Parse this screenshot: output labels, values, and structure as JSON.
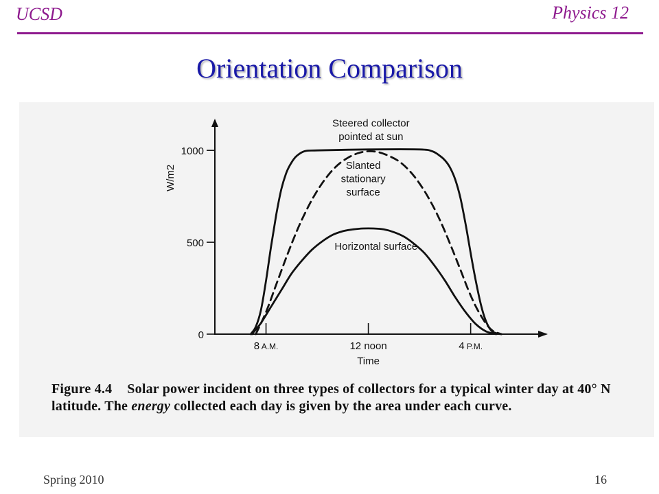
{
  "header": {
    "left": "UCSD",
    "right": "Physics 12"
  },
  "slide": {
    "title": "Orientation Comparison"
  },
  "figure": {
    "caption_num": "Figure 4.4",
    "caption_part1": "Solar power incident on three types of collectors for a typical winter day at 40° N latitude. The",
    "caption_em": "energy",
    "caption_part2": "collected each day is given by the area under each curve."
  },
  "footer": {
    "left": "Spring 2010",
    "page": "16"
  },
  "colors": {
    "accent": "#8e1a8e",
    "title": "#1a1aa8",
    "ink": "#111111",
    "panel": "#f3f3f3"
  },
  "chart_data": {
    "type": "line",
    "title": "",
    "xlabel": "Time",
    "ylabel": "W/m2",
    "x_unit": "hour of day",
    "xlim": [
      6.0,
      18.8
    ],
    "ylim": [
      0,
      1150
    ],
    "y_ticks": [
      0,
      500,
      1000
    ],
    "x_ticks": [
      {
        "value": 8,
        "main": "8",
        "sub": "A.M."
      },
      {
        "value": 12,
        "main": "12 noon",
        "sub": ""
      },
      {
        "value": 16,
        "main": "4",
        "sub": "P.M."
      }
    ],
    "grid": false,
    "legend": "none (curves labelled directly)",
    "series": [
      {
        "name": "Steered collector pointed at sun",
        "style": "solid",
        "x": [
          7.4,
          7.6,
          7.8,
          8.0,
          8.2,
          8.4,
          8.6,
          8.8,
          9.0,
          9.2,
          9.5,
          10.0,
          12.0,
          14.0,
          14.5,
          14.8,
          15.0,
          15.2,
          15.4,
          15.6,
          15.8,
          16.0,
          16.2,
          16.4,
          16.6,
          16.8,
          17.0,
          17.2
        ],
        "values": [
          0,
          40,
          130,
          290,
          480,
          650,
          790,
          880,
          935,
          970,
          995,
          1000,
          1005,
          1005,
          995,
          970,
          945,
          905,
          840,
          740,
          600,
          440,
          290,
          160,
          70,
          20,
          5,
          0
        ]
      },
      {
        "name": "Slanted stationary surface",
        "style": "dashed",
        "x": [
          7.6,
          8.0,
          8.4,
          8.8,
          9.2,
          9.6,
          10.0,
          10.4,
          10.8,
          11.2,
          11.6,
          12.0,
          12.4,
          12.8,
          13.2,
          13.6,
          14.0,
          14.4,
          14.8,
          15.2,
          15.6,
          16.0,
          16.4,
          16.8,
          17.2
        ],
        "values": [
          0,
          120,
          270,
          420,
          560,
          680,
          780,
          860,
          920,
          960,
          985,
          995,
          990,
          970,
          940,
          890,
          820,
          730,
          620,
          490,
          350,
          210,
          100,
          25,
          0
        ]
      },
      {
        "name": "Horizontal surface",
        "style": "solid",
        "x": [
          7.45,
          7.8,
          8.2,
          8.6,
          9.0,
          9.4,
          9.8,
          10.2,
          10.6,
          11.0,
          11.4,
          11.8,
          12.2,
          12.6,
          13.0,
          13.4,
          13.8,
          14.2,
          14.6,
          15.0,
          15.4,
          15.8,
          16.2,
          16.6,
          17.0
        ],
        "values": [
          0,
          60,
          150,
          240,
          330,
          400,
          460,
          505,
          540,
          560,
          570,
          575,
          575,
          570,
          555,
          530,
          490,
          440,
          370,
          290,
          200,
          120,
          55,
          15,
          0
        ]
      }
    ],
    "annotations": [
      {
        "lines": [
          "Steered collector",
          "pointed at sun"
        ],
        "x": 12.1,
        "y": 1130
      },
      {
        "lines": [
          "Slanted",
          "stationary",
          "surface"
        ],
        "x": 11.8,
        "y": 900
      },
      {
        "lines": [
          "Horizontal surface"
        ],
        "x": 12.3,
        "y": 460
      }
    ]
  }
}
